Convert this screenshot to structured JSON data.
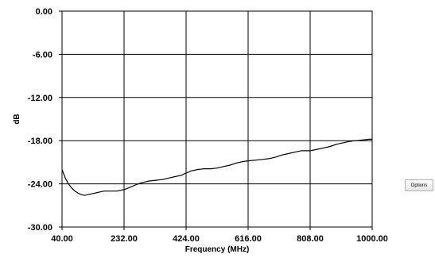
{
  "chart_data": {
    "type": "line",
    "xlabel": "Frequency (MHz)",
    "ylabel": "dB",
    "xlim": [
      40,
      1000
    ],
    "ylim": [
      -30,
      0
    ],
    "x_ticks": [
      "40.00",
      "232.00",
      "424.00",
      "616.00",
      "808.00",
      "1000.00"
    ],
    "y_ticks": [
      "0.00",
      "-6.00",
      "-12.00",
      "-18.00",
      "-24.00",
      "-30.00"
    ],
    "x_tick_values": [
      40,
      232,
      424,
      616,
      808,
      1000
    ],
    "y_tick_values": [
      0,
      -6,
      -12,
      -18,
      -24,
      -30
    ],
    "grid": true,
    "series": [
      {
        "color": "#000000",
        "x": [
          40,
          50,
          60,
          70,
          80,
          90,
          100,
          110,
          120,
          130,
          140,
          150,
          160,
          170,
          180,
          190,
          200,
          210,
          220,
          232,
          250,
          270,
          290,
          310,
          330,
          350,
          370,
          390,
          410,
          424,
          440,
          460,
          480,
          500,
          520,
          540,
          560,
          580,
          600,
          616,
          640,
          660,
          680,
          700,
          720,
          740,
          760,
          780,
          800,
          808,
          830,
          850,
          870,
          890,
          910,
          930,
          950,
          970,
          990,
          1000
        ],
        "y": [
          -22.0,
          -23.2,
          -24.0,
          -24.6,
          -25.0,
          -25.3,
          -25.5,
          -25.6,
          -25.5,
          -25.4,
          -25.3,
          -25.2,
          -25.1,
          -25.0,
          -25.0,
          -25.0,
          -25.0,
          -25.0,
          -24.9,
          -24.8,
          -24.5,
          -24.1,
          -23.8,
          -23.6,
          -23.5,
          -23.4,
          -23.2,
          -23.0,
          -22.8,
          -22.5,
          -22.2,
          -22.0,
          -21.9,
          -21.9,
          -21.8,
          -21.6,
          -21.4,
          -21.1,
          -20.9,
          -20.8,
          -20.7,
          -20.6,
          -20.5,
          -20.3,
          -20.0,
          -19.8,
          -19.6,
          -19.4,
          -19.4,
          -19.4,
          -19.2,
          -19.0,
          -18.8,
          -18.5,
          -18.3,
          -18.1,
          -18.0,
          -17.9,
          -17.8,
          -17.8
        ]
      }
    ]
  },
  "controls": {
    "options_label": "Options"
  }
}
